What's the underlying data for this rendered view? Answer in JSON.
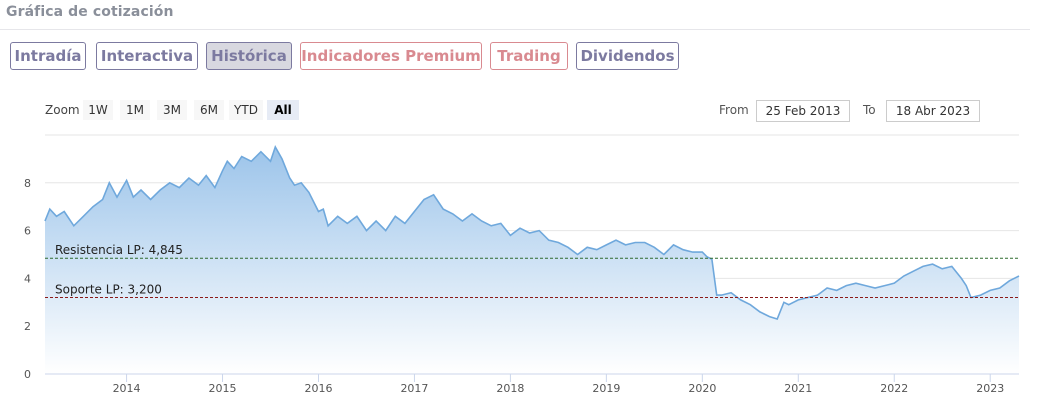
{
  "header": {
    "title": "Gráfica de cotización"
  },
  "tabs": [
    {
      "label": "Intradía",
      "style": "normal"
    },
    {
      "label": "Interactiva",
      "style": "normal"
    },
    {
      "label": "Histórica",
      "style": "active"
    },
    {
      "label": "Indicadores Premium",
      "style": "premium"
    },
    {
      "label": "Trading",
      "style": "premium"
    },
    {
      "label": "Dividendos",
      "style": "normal"
    }
  ],
  "zoom": {
    "label": "Zoom",
    "buttons": [
      "1W",
      "1M",
      "3M",
      "6M",
      "YTD",
      "All"
    ],
    "selected": "All"
  },
  "range": {
    "from_label": "From",
    "from_value": "25 Feb 2013",
    "to_label": "To",
    "to_value": "18 Abr 2023"
  },
  "colors": {
    "line": "#6fa8dc",
    "area_top": "#9cc4ea",
    "area_bottom": "#ffffff",
    "resistance": "#2f6b2f",
    "support": "#8b1a1a",
    "tab_normal": "#7c7aa0",
    "tab_premium": "#d98a90"
  },
  "chart_data": {
    "type": "area",
    "xlim": [
      2013.15,
      2023.3
    ],
    "ylim": [
      0,
      10
    ],
    "yticks": [
      0,
      2,
      4,
      6,
      8
    ],
    "xticks": [
      "2014",
      "2015",
      "2016",
      "2017",
      "2018",
      "2019",
      "2020",
      "2021",
      "2022",
      "2023"
    ],
    "xtick_values": [
      2014,
      2015,
      2016,
      2017,
      2018,
      2019,
      2020,
      2021,
      2022,
      2023
    ],
    "reference_lines": [
      {
        "label": "Resistencia LP: 4,845",
        "value": 4.845,
        "style": "dashed",
        "role": "resistance"
      },
      {
        "label": "Soporte LP: 3,200",
        "value": 3.2,
        "style": "dashed",
        "role": "support"
      }
    ],
    "x": [
      2013.15,
      2013.2,
      2013.27,
      2013.35,
      2013.45,
      2013.55,
      2013.65,
      2013.75,
      2013.82,
      2013.9,
      2014.0,
      2014.07,
      2014.15,
      2014.25,
      2014.35,
      2014.45,
      2014.55,
      2014.65,
      2014.75,
      2014.83,
      2014.92,
      2015.0,
      2015.05,
      2015.12,
      2015.2,
      2015.3,
      2015.4,
      2015.5,
      2015.55,
      2015.62,
      2015.7,
      2015.75,
      2015.82,
      2015.9,
      2016.0,
      2016.05,
      2016.1,
      2016.2,
      2016.3,
      2016.4,
      2016.5,
      2016.6,
      2016.7,
      2016.8,
      2016.9,
      2017.0,
      2017.1,
      2017.2,
      2017.3,
      2017.4,
      2017.5,
      2017.6,
      2017.7,
      2017.8,
      2017.9,
      2018.0,
      2018.1,
      2018.2,
      2018.3,
      2018.4,
      2018.5,
      2018.6,
      2018.7,
      2018.8,
      2018.9,
      2019.0,
      2019.1,
      2019.2,
      2019.3,
      2019.4,
      2019.5,
      2019.6,
      2019.7,
      2019.8,
      2019.9,
      2020.0,
      2020.05,
      2020.1,
      2020.15,
      2020.2,
      2020.3,
      2020.4,
      2020.5,
      2020.6,
      2020.7,
      2020.78,
      2020.85,
      2020.9,
      2021.0,
      2021.1,
      2021.2,
      2021.3,
      2021.4,
      2021.5,
      2021.6,
      2021.7,
      2021.8,
      2021.9,
      2022.0,
      2022.1,
      2022.2,
      2022.3,
      2022.4,
      2022.5,
      2022.6,
      2022.7,
      2022.75,
      2022.8,
      2022.9,
      2023.0,
      2023.1,
      2023.2,
      2023.3
    ],
    "y": [
      6.4,
      6.9,
      6.6,
      6.8,
      6.2,
      6.6,
      7.0,
      7.3,
      8.0,
      7.4,
      8.1,
      7.4,
      7.7,
      7.3,
      7.7,
      8.0,
      7.8,
      8.2,
      7.9,
      8.3,
      7.8,
      8.5,
      8.9,
      8.6,
      9.1,
      8.9,
      9.3,
      8.9,
      9.5,
      9.0,
      8.2,
      7.9,
      8.0,
      7.6,
      6.8,
      6.9,
      6.2,
      6.6,
      6.3,
      6.6,
      6.0,
      6.4,
      6.0,
      6.6,
      6.3,
      6.8,
      7.3,
      7.5,
      6.9,
      6.7,
      6.4,
      6.7,
      6.4,
      6.2,
      6.3,
      5.8,
      6.1,
      5.9,
      6.0,
      5.6,
      5.5,
      5.3,
      5.0,
      5.3,
      5.2,
      5.4,
      5.6,
      5.4,
      5.5,
      5.5,
      5.3,
      5.0,
      5.4,
      5.2,
      5.1,
      5.1,
      4.9,
      4.8,
      3.3,
      3.3,
      3.4,
      3.1,
      2.9,
      2.6,
      2.4,
      2.3,
      3.0,
      2.9,
      3.1,
      3.2,
      3.3,
      3.6,
      3.5,
      3.7,
      3.8,
      3.7,
      3.6,
      3.7,
      3.8,
      4.1,
      4.3,
      4.5,
      4.6,
      4.4,
      4.5,
      4.0,
      3.7,
      3.2,
      3.3,
      3.5,
      3.6,
      3.9,
      4.1
    ]
  }
}
